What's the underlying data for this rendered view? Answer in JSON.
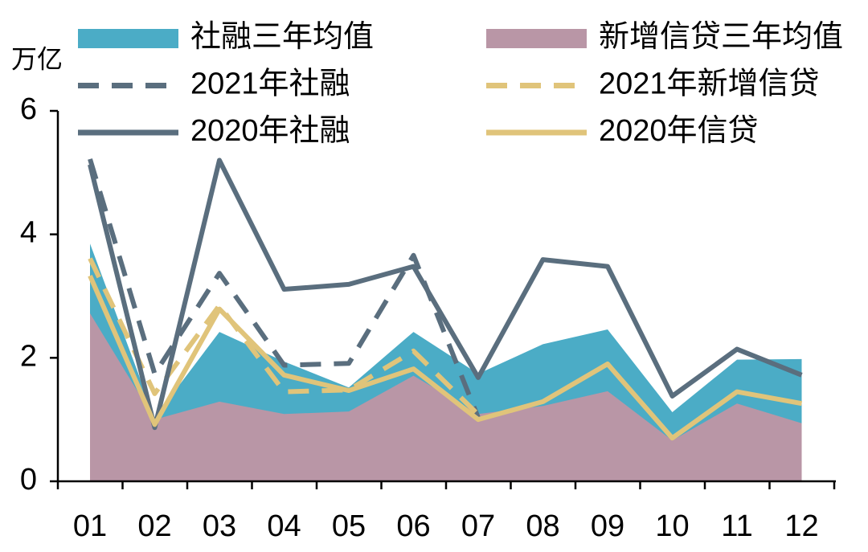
{
  "chart_data": {
    "type": "line",
    "ylabel": "万亿",
    "categories": [
      "01",
      "02",
      "03",
      "04",
      "05",
      "06",
      "07",
      "08",
      "09",
      "10",
      "11",
      "12"
    ],
    "ylim": [
      0,
      6
    ],
    "yticks": [
      0,
      2,
      4,
      6
    ],
    "series": [
      {
        "name": "社融三年均值",
        "color": "#4bacc6",
        "style": "area",
        "values": [
          3.85,
          1.03,
          2.42,
          1.94,
          1.52,
          2.42,
          1.74,
          2.22,
          2.46,
          1.12,
          1.97,
          1.98
        ]
      },
      {
        "name": "新增信贷三年均值",
        "color": "#b996a6",
        "style": "area",
        "values": [
          2.72,
          1.0,
          1.29,
          1.09,
          1.13,
          1.71,
          1.09,
          1.22,
          1.46,
          0.66,
          1.26,
          0.94
        ]
      },
      {
        "name": "2021年社融",
        "color": "#5a6e7e",
        "style": "dashed",
        "values": [
          5.22,
          1.74,
          3.37,
          1.88,
          1.91,
          3.66,
          1.03,
          null,
          null,
          null,
          null,
          null
        ]
      },
      {
        "name": "2021年新增信贷",
        "color": "#e0c47a",
        "style": "dashed",
        "values": [
          3.61,
          1.42,
          2.85,
          1.45,
          1.48,
          2.11,
          1.08,
          null,
          null,
          null,
          null,
          null
        ]
      },
      {
        "name": "2020年社融",
        "color": "#5a6e7e",
        "style": "solid",
        "values": [
          5.13,
          0.87,
          5.2,
          3.11,
          3.19,
          3.48,
          1.68,
          3.59,
          3.48,
          1.38,
          2.14,
          1.72
        ]
      },
      {
        "name": "2020年信贷",
        "color": "#e0c47a",
        "style": "solid",
        "values": [
          3.33,
          0.92,
          2.79,
          1.72,
          1.47,
          1.82,
          1.0,
          1.29,
          1.9,
          0.7,
          1.45,
          1.26
        ]
      }
    ]
  }
}
